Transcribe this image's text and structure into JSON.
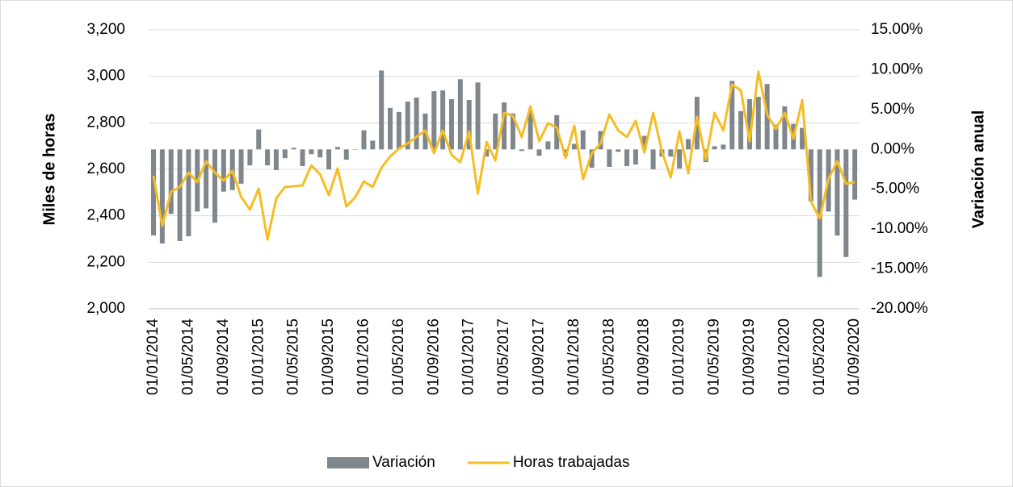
{
  "chart_data": {
    "type": "bar-line",
    "y_label": "Miles de horas",
    "y2_label": "Variación anual",
    "categories": [
      "01/01/2014",
      null,
      null,
      null,
      "01/05/2014",
      null,
      null,
      null,
      "01/09/2014",
      null,
      null,
      null,
      "01/01/2015",
      null,
      null,
      null,
      "01/05/2015",
      null,
      null,
      null,
      "01/09/2015",
      null,
      null,
      null,
      "01/01/2016",
      null,
      null,
      null,
      "01/05/2016",
      null,
      null,
      null,
      "01/09/2016",
      null,
      null,
      null,
      "01/01/2017",
      null,
      null,
      null,
      "01/05/2017",
      null,
      null,
      null,
      "01/09/2017",
      null,
      null,
      null,
      "01/01/2018",
      null,
      null,
      null,
      "01/05/2018",
      null,
      null,
      null,
      "01/09/2018",
      null,
      null,
      null,
      "01/01/2019",
      null,
      null,
      null,
      "01/05/2019",
      null,
      null,
      null,
      "01/09/2019",
      null,
      null,
      null,
      "01/01/2020",
      null,
      null,
      null,
      "01/05/2020",
      null,
      null,
      null,
      "01/09/2020"
    ],
    "series": [
      {
        "name": "Variación",
        "type": "bar",
        "axis": "y2",
        "color": "#7f868c",
        "values": [
          -10.8,
          -11.8,
          -8.1,
          -11.5,
          -10.9,
          -7.8,
          -7.4,
          -9.2,
          -5.3,
          -5.1,
          -4.3,
          -2.0,
          2.5,
          -2.0,
          -2.6,
          -1.1,
          0.2,
          -2.1,
          -0.6,
          -1.0,
          -2.5,
          0.3,
          -1.3,
          0.0,
          2.4,
          1.1,
          9.9,
          5.2,
          4.7,
          6.0,
          6.5,
          4.5,
          7.3,
          7.4,
          6.3,
          8.8,
          6.2,
          8.4,
          -0.9,
          4.5,
          5.9,
          4.5,
          -0.2,
          4.8,
          -0.8,
          1.0,
          4.3,
          -0.8,
          0.7,
          2.4,
          -2.3,
          2.3,
          -2.2,
          -0.3,
          -2.1,
          -1.9,
          1.7,
          -2.5,
          -0.9,
          -0.9,
          -2.4,
          1.3,
          6.6,
          -1.6,
          0.4,
          0.6,
          8.6,
          4.8,
          6.3,
          6.6,
          8.2,
          3.1,
          5.4,
          3.2,
          2.7,
          -6.5,
          -16.0,
          -7.8,
          -10.8,
          -13.5,
          -6.3
        ]
      },
      {
        "name": "Horas trabajadas",
        "type": "line",
        "axis": "y",
        "color": "#f5bd23",
        "values": [
          2572,
          2357,
          2503,
          2524,
          2586,
          2545,
          2635,
          2586,
          2551,
          2593,
          2482,
          2427,
          2517,
          2298,
          2475,
          2524,
          2527,
          2531,
          2617,
          2579,
          2489,
          2603,
          2440,
          2479,
          2548,
          2524,
          2607,
          2655,
          2690,
          2711,
          2739,
          2767,
          2669,
          2767,
          2662,
          2631,
          2763,
          2496,
          2718,
          2638,
          2843,
          2829,
          2739,
          2871,
          2721,
          2798,
          2780,
          2649,
          2787,
          2558,
          2669,
          2711,
          2836,
          2767,
          2739,
          2808,
          2673,
          2843,
          2676,
          2565,
          2763,
          2583,
          2826,
          2642,
          2843,
          2767,
          2964,
          2940,
          2721,
          3020,
          2836,
          2773,
          2843,
          2732,
          2898,
          2461,
          2389,
          2558,
          2635,
          2538,
          2545
        ]
      }
    ],
    "ylim": [
      2000,
      3200
    ],
    "yticks": [
      {
        "value": 2000,
        "label": "2,000"
      },
      {
        "value": 2200,
        "label": "2,200"
      },
      {
        "value": 2400,
        "label": "2,400"
      },
      {
        "value": 2600,
        "label": "2,600"
      },
      {
        "value": 2800,
        "label": "2,800"
      },
      {
        "value": 3000,
        "label": "3,000"
      },
      {
        "value": 3200,
        "label": "3,200"
      }
    ],
    "y2lim": [
      -20,
      15
    ],
    "y2ticks": [
      {
        "value": -20,
        "label": "-20.00%"
      },
      {
        "value": -15,
        "label": "-15.00%"
      },
      {
        "value": -10,
        "label": "-10.00%"
      },
      {
        "value": -5,
        "label": "-5.00%"
      },
      {
        "value": 0,
        "label": "0.00%"
      },
      {
        "value": 5,
        "label": "5.00%"
      },
      {
        "value": 10,
        "label": "10.00%"
      },
      {
        "value": 15,
        "label": "15.00%"
      }
    ],
    "grid": true,
    "legend": "bottom"
  }
}
